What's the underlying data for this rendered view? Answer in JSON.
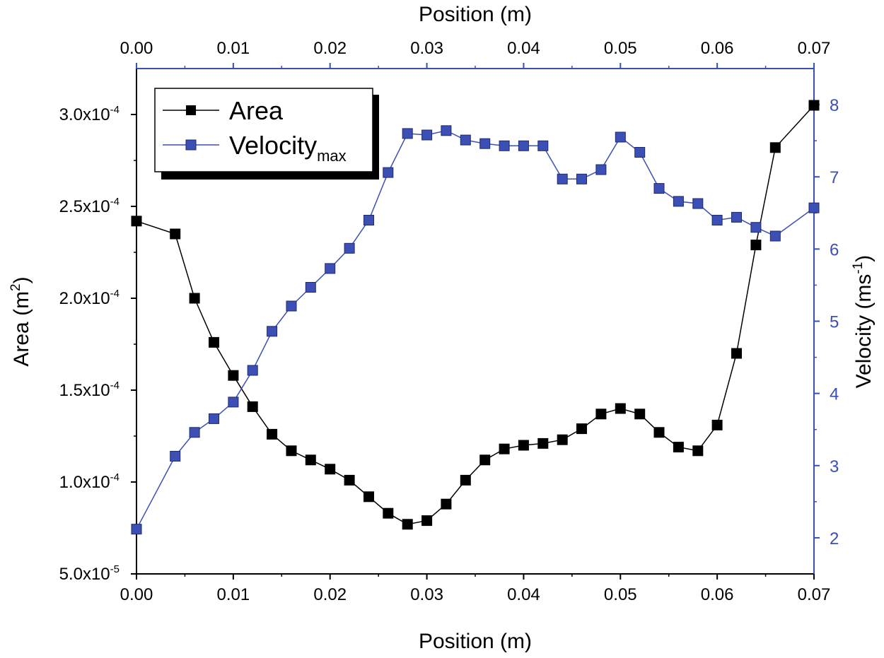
{
  "chart_data": {
    "type": "line",
    "title": "",
    "xlabel_bottom": "Position (m)",
    "xlabel_top": "Position (m)",
    "ylabel_left": {
      "base": "Area (m",
      "sup": "2",
      "end": ")"
    },
    "ylabel_right": {
      "base": "Velocity (ms",
      "sup": "-1",
      "end": ")"
    },
    "xlim": [
      0,
      0.07
    ],
    "ylim_left": [
      5e-05,
      0.000325
    ],
    "ylim_right": [
      1.5,
      8.5
    ],
    "x_ticks": [
      {
        "value": 0.0,
        "label": "0.00"
      },
      {
        "value": 0.01,
        "label": "0.01"
      },
      {
        "value": 0.02,
        "label": "0.02"
      },
      {
        "value": 0.03,
        "label": "0.03"
      },
      {
        "value": 0.04,
        "label": "0.04"
      },
      {
        "value": 0.05,
        "label": "0.05"
      },
      {
        "value": 0.06,
        "label": "0.06"
      },
      {
        "value": 0.07,
        "label": "0.07"
      }
    ],
    "y_left_ticks": [
      {
        "value": 5e-05,
        "mantissa": "5.0x10",
        "exp": "-5"
      },
      {
        "value": 0.0001,
        "mantissa": "1.0x10",
        "exp": "-4"
      },
      {
        "value": 0.00015,
        "mantissa": "1.5x10",
        "exp": "-4"
      },
      {
        "value": 0.0002,
        "mantissa": "2.0x10",
        "exp": "-4"
      },
      {
        "value": 0.00025,
        "mantissa": "2.5x10",
        "exp": "-4"
      },
      {
        "value": 0.0003,
        "mantissa": "3.0x10",
        "exp": "-4"
      }
    ],
    "y_right_ticks": [
      {
        "value": 2,
        "label": "2"
      },
      {
        "value": 3,
        "label": "3"
      },
      {
        "value": 4,
        "label": "4"
      },
      {
        "value": 5,
        "label": "5"
      },
      {
        "value": 6,
        "label": "6"
      },
      {
        "value": 7,
        "label": "7"
      },
      {
        "value": 8,
        "label": "8"
      }
    ],
    "legend": {
      "placement": "top-left",
      "entries": [
        {
          "name": "Area",
          "sub": ""
        },
        {
          "name": "Velocity",
          "sub": "max"
        }
      ]
    },
    "series": [
      {
        "name": "Area",
        "axis": "left",
        "color": "#000000",
        "x": [
          0.0,
          0.004,
          0.006,
          0.008,
          0.01,
          0.012,
          0.014,
          0.016,
          0.018,
          0.02,
          0.022,
          0.024,
          0.026,
          0.028,
          0.03,
          0.032,
          0.034,
          0.036,
          0.038,
          0.04,
          0.042,
          0.044,
          0.046,
          0.048,
          0.05,
          0.052,
          0.054,
          0.056,
          0.058,
          0.06,
          0.062,
          0.064,
          0.066,
          0.07
        ],
        "y": [
          0.000242,
          0.000235,
          0.0002,
          0.000176,
          0.000158,
          0.000141,
          0.000126,
          0.000117,
          0.000112,
          0.000107,
          0.000101,
          9.2e-05,
          8.3e-05,
          7.7e-05,
          7.9e-05,
          8.8e-05,
          0.000101,
          0.000112,
          0.000118,
          0.00012,
          0.000121,
          0.000123,
          0.000129,
          0.000137,
          0.00014,
          0.000137,
          0.000127,
          0.000119,
          0.000117,
          0.000131,
          0.00017,
          0.000229,
          0.000282,
          0.000305
        ]
      },
      {
        "name": "Velocity max",
        "axis": "right",
        "color": "#3c4fb4",
        "x": [
          0.0,
          0.004,
          0.006,
          0.008,
          0.01,
          0.012,
          0.014,
          0.016,
          0.018,
          0.02,
          0.022,
          0.024,
          0.026,
          0.028,
          0.03,
          0.032,
          0.034,
          0.036,
          0.038,
          0.04,
          0.042,
          0.044,
          0.046,
          0.048,
          0.05,
          0.052,
          0.054,
          0.056,
          0.058,
          0.06,
          0.062,
          0.064,
          0.066,
          0.07
        ],
        "y": [
          2.12,
          3.13,
          3.46,
          3.65,
          3.88,
          4.32,
          4.86,
          5.21,
          5.47,
          5.73,
          6.01,
          6.4,
          7.06,
          7.6,
          7.58,
          7.64,
          7.51,
          7.46,
          7.43,
          7.43,
          7.43,
          6.97,
          6.97,
          7.1,
          7.55,
          7.34,
          6.84,
          6.66,
          6.63,
          6.4,
          6.44,
          6.3,
          6.18,
          6.57
        ]
      }
    ]
  },
  "colors": {
    "blue_axis": "#3c4fb4",
    "black": "#000000",
    "area_marker": "#000000",
    "velocity_marker": "#3c4fb4"
  }
}
